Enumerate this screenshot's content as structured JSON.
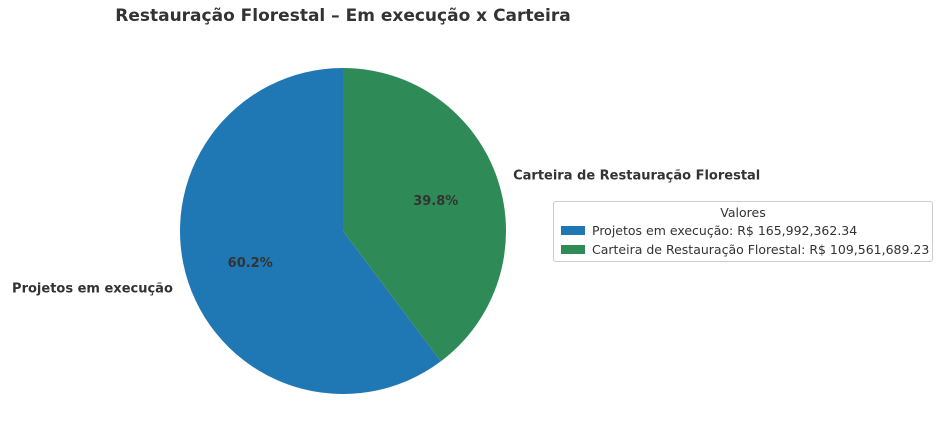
{
  "colors": {
    "series_0": "#1f77b4",
    "series_1": "#2e8b57",
    "text": "#333333"
  },
  "chart_data": {
    "type": "pie",
    "title": "Restauração Florestal – Em execução x Carteira",
    "categories": [
      "Projetos em execução",
      "Carteira de Restauração Florestal"
    ],
    "values": [
      165992362.34,
      109561689.23
    ],
    "percent_labels": [
      "60.2%",
      "39.8%"
    ],
    "start_angle": "top (12 o'clock)",
    "direction": "counterclockwise for first slice",
    "legend": {
      "title": "Valores",
      "placement": "right",
      "entries": [
        "Projetos em execução: R$ 165,992,362.34",
        "Carteira de Restauração Florestal: R$ 109,561,689.23"
      ]
    }
  }
}
